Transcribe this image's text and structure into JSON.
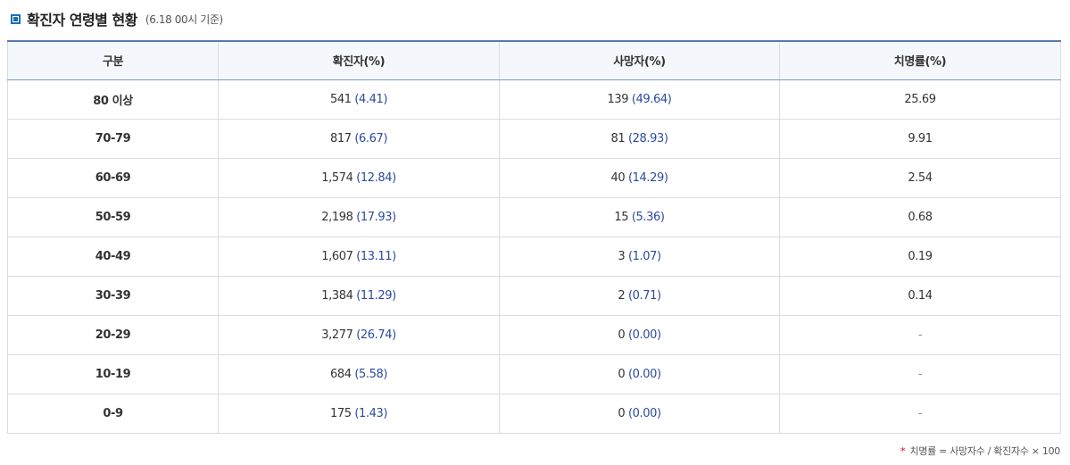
{
  "header": {
    "title": "확진자 연령별 현황",
    "note": "(6.18 00시 기준)"
  },
  "table": {
    "columns": [
      "구분",
      "확진자(%)",
      "사망자(%)",
      "치명률(%)"
    ],
    "rows": [
      {
        "age": "80 이상",
        "cases": "541",
        "cases_pct": "(4.41)",
        "deaths": "139",
        "deaths_pct": "(49.64)",
        "cfr": "25.69"
      },
      {
        "age": "70-79",
        "cases": "817",
        "cases_pct": "(6.67)",
        "deaths": "81",
        "deaths_pct": "(28.93)",
        "cfr": "9.91"
      },
      {
        "age": "60-69",
        "cases": "1,574",
        "cases_pct": "(12.84)",
        "deaths": "40",
        "deaths_pct": "(14.29)",
        "cfr": "2.54"
      },
      {
        "age": "50-59",
        "cases": "2,198",
        "cases_pct": "(17.93)",
        "deaths": "15",
        "deaths_pct": "(5.36)",
        "cfr": "0.68"
      },
      {
        "age": "40-49",
        "cases": "1,607",
        "cases_pct": "(13.11)",
        "deaths": "3",
        "deaths_pct": "(1.07)",
        "cfr": "0.19"
      },
      {
        "age": "30-39",
        "cases": "1,384",
        "cases_pct": "(11.29)",
        "deaths": "2",
        "deaths_pct": "(0.71)",
        "cfr": "0.14"
      },
      {
        "age": "20-29",
        "cases": "3,277",
        "cases_pct": "(26.74)",
        "deaths": "0",
        "deaths_pct": "(0.00)",
        "cfr": "-"
      },
      {
        "age": "10-19",
        "cases": "684",
        "cases_pct": "(5.58)",
        "deaths": "0",
        "deaths_pct": "(0.00)",
        "cfr": "-"
      },
      {
        "age": "0-9",
        "cases": "175",
        "cases_pct": "(1.43)",
        "deaths": "0",
        "deaths_pct": "(0.00)",
        "cfr": "-"
      }
    ]
  },
  "footnote": {
    "star": "*",
    "text": "치명률 = 사망자수 / 확진자수 × 100"
  },
  "colors": {
    "accent": "#1a6fb5",
    "header_border": "#5a7ab3",
    "value_blue": "#2b4aa0",
    "footnote_star": "#d0021b"
  }
}
